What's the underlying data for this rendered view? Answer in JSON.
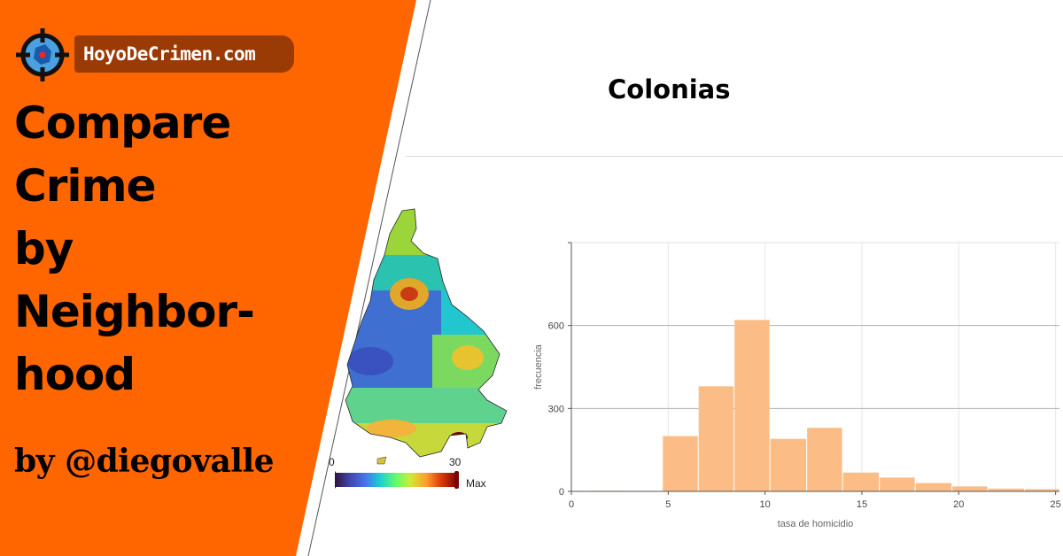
{
  "brand": {
    "site_name": "HoyoDeCrimen.com",
    "headline_lines": [
      "Compare",
      "Crime",
      "by",
      "Neighbor-",
      "hood"
    ],
    "byline": "by @diegovalle",
    "colors": {
      "orange": "#ff6600",
      "pill": "#9a3a05",
      "bar": "#fbbd85"
    },
    "logo_icon": "crosshair-target-icon"
  },
  "map": {
    "legend_min": "0",
    "legend_max": "30",
    "legend_extra": "Max",
    "colormap": "turbo"
  },
  "chart_data": {
    "type": "bar",
    "title": "Colonias",
    "xlabel": "tasa de homicidio",
    "ylabel": "frecuencia",
    "xlim": [
      0,
      25.2
    ],
    "ylim": [
      0,
      900
    ],
    "xticks": [
      "0",
      "5",
      "10",
      "15",
      "20",
      "25"
    ],
    "yticks": [
      "0",
      "300",
      "600"
    ],
    "grid": true,
    "bins": [
      {
        "x0": 0.9,
        "x1": 2.8,
        "value": 2
      },
      {
        "x0": 2.8,
        "x1": 4.7,
        "value": 1
      },
      {
        "x0": 4.7,
        "x1": 6.55,
        "value": 200
      },
      {
        "x0": 6.55,
        "x1": 8.4,
        "value": 380
      },
      {
        "x0": 8.4,
        "x1": 10.25,
        "value": 620
      },
      {
        "x0": 10.25,
        "x1": 12.15,
        "value": 190
      },
      {
        "x0": 12.15,
        "x1": 14.0,
        "value": 230
      },
      {
        "x0": 14.0,
        "x1": 15.9,
        "value": 68
      },
      {
        "x0": 15.9,
        "x1": 17.75,
        "value": 50
      },
      {
        "x0": 17.75,
        "x1": 19.65,
        "value": 30
      },
      {
        "x0": 19.65,
        "x1": 21.5,
        "value": 18
      },
      {
        "x0": 21.5,
        "x1": 23.4,
        "value": 10
      },
      {
        "x0": 23.4,
        "x1": 25.2,
        "value": 8
      }
    ]
  }
}
